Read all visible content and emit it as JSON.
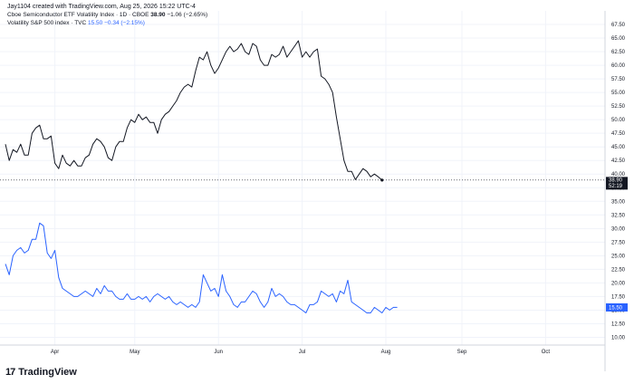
{
  "header": {
    "attribution": "Jay1104 created with TradingView.com, Aug 25, 2026 15:22 UTC-4"
  },
  "legend": [
    {
      "name": "Cboe Semiconductor ETF Volatility Index · 1D · CBOE",
      "last": "38.90",
      "change": "−1.06 (−2.65%)",
      "color": "#131722"
    },
    {
      "name": "Volatility S&P 500 index · TVC",
      "last": "15.50",
      "change": "−0.34 (−2.15%)",
      "color": "#2962ff"
    }
  ],
  "price_labels": {
    "vxsox_last": "38.90",
    "vxsox_countdown": "52:19",
    "vix_last": "15.50"
  },
  "brand": {
    "mark": "17",
    "name": "TradingView"
  },
  "chart_data": {
    "type": "line",
    "y_ticks": [
      "67.50",
      "65.00",
      "62.50",
      "60.00",
      "57.50",
      "55.00",
      "52.50",
      "50.00",
      "47.50",
      "45.00",
      "42.50",
      "40.00",
      "37.50",
      "35.00",
      "32.50",
      "30.00",
      "27.50",
      "25.00",
      "22.50",
      "20.00",
      "17.50",
      "15.00",
      "12.50",
      "10.00"
    ],
    "ylim": [
      8.75,
      70.0
    ],
    "x_ticks": [
      "Apr",
      "May",
      "Jun",
      "Jul",
      "Aug",
      "Sep",
      "Oct"
    ],
    "x_tick_index": [
      13,
      34,
      56,
      78,
      100,
      120,
      142
    ],
    "grid": true,
    "series": [
      {
        "name": "Cboe Semiconductor ETF Volatility Index",
        "color": "#131722",
        "values": [
          45.5,
          42.5,
          44.5,
          44.0,
          45.5,
          43.5,
          43.5,
          47.5,
          48.5,
          49.0,
          46.5,
          46.5,
          47.0,
          42.0,
          41.0,
          43.5,
          42.0,
          41.5,
          42.5,
          41.5,
          41.5,
          43.0,
          43.5,
          45.5,
          46.5,
          46.0,
          45.0,
          43.0,
          42.5,
          45.0,
          46.0,
          46.0,
          48.5,
          50.0,
          49.5,
          51.0,
          50.0,
          50.5,
          49.5,
          49.5,
          47.5,
          50.0,
          51.0,
          51.5,
          52.5,
          53.5,
          55.0,
          56.0,
          56.5,
          56.0,
          59.0,
          61.5,
          61.0,
          62.5,
          60.0,
          58.5,
          59.5,
          61.0,
          62.5,
          63.5,
          62.5,
          63.0,
          64.0,
          62.5,
          62.0,
          64.0,
          63.5,
          61.0,
          60.0,
          60.0,
          62.0,
          61.5,
          62.0,
          63.5,
          61.5,
          62.5,
          63.5,
          64.5,
          61.5,
          62.5,
          61.5,
          62.5,
          63.0,
          58.0,
          57.5,
          56.5,
          55.0,
          50.5,
          46.5,
          42.5,
          40.5,
          40.5,
          39.0,
          40.0,
          41.0,
          40.5,
          39.5,
          40.0,
          39.5,
          38.9
        ]
      },
      {
        "name": "Volatility S&P 500 index",
        "color": "#2962ff",
        "values": [
          23.5,
          21.5,
          25.0,
          26.0,
          26.5,
          25.5,
          26.0,
          28.0,
          28.0,
          31.0,
          30.5,
          25.5,
          24.5,
          26.0,
          21.0,
          19.0,
          18.5,
          18.0,
          17.5,
          17.5,
          18.0,
          18.5,
          18.0,
          17.5,
          19.0,
          18.0,
          19.5,
          18.5,
          18.5,
          17.5,
          17.0,
          17.0,
          18.0,
          17.0,
          17.0,
          17.5,
          17.0,
          17.5,
          16.5,
          17.5,
          18.0,
          17.5,
          17.0,
          17.5,
          16.5,
          16.0,
          16.5,
          16.0,
          15.5,
          16.0,
          15.5,
          16.5,
          21.5,
          20.0,
          18.5,
          19.0,
          17.5,
          21.5,
          18.5,
          17.5,
          16.0,
          15.5,
          16.5,
          16.5,
          17.5,
          18.5,
          18.0,
          16.5,
          15.5,
          16.5,
          19.0,
          17.5,
          18.0,
          17.5,
          16.5,
          16.0,
          16.0,
          15.5,
          15.0,
          14.5,
          16.0,
          16.0,
          16.5,
          18.5,
          18.0,
          17.5,
          18.0,
          16.5,
          18.5,
          18.0,
          20.5,
          16.5,
          16.0,
          15.5,
          15.0,
          14.5,
          14.5,
          15.5,
          15.0,
          14.5,
          15.5,
          15.0,
          15.5,
          15.5
        ]
      }
    ]
  }
}
